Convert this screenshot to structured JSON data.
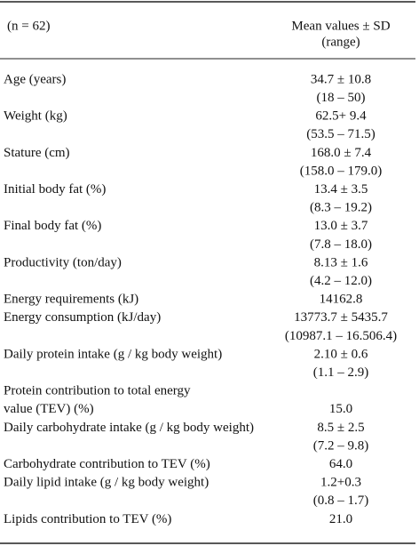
{
  "table": {
    "header": {
      "left": "(n = 62)",
      "right": [
        "Mean values ± SD",
        "(range)"
      ]
    },
    "rows": [
      {
        "label": [
          "Age (years)"
        ],
        "value": [
          "34.7 ± 10.8",
          "(18 – 50)"
        ]
      },
      {
        "label": [
          "Weight (kg)"
        ],
        "value": [
          "62.5+ 9.4",
          "(53.5 – 71.5)"
        ]
      },
      {
        "label": [
          "Stature (cm)"
        ],
        "value": [
          "168.0 ± 7.4",
          "(158.0 – 179.0)"
        ]
      },
      {
        "label": [
          "Initial body fat (%)"
        ],
        "value": [
          "13.4 ± 3.5",
          "(8.3 – 19.2)"
        ]
      },
      {
        "label": [
          "Final body fat (%)"
        ],
        "value": [
          "13.0 ± 3.7",
          "(7.8 – 18.0)"
        ]
      },
      {
        "label": [
          "Productivity (ton/day)"
        ],
        "value": [
          "8.13 ± 1.6",
          "(4.2 – 12.0)"
        ]
      },
      {
        "label": [
          "Energy requirements (kJ)"
        ],
        "value": [
          "14162.8"
        ]
      },
      {
        "label": [
          "Energy consumption (kJ/day)"
        ],
        "value": [
          "13773.7 ± 5435.7",
          "(10987.1 – 16.506.4)"
        ]
      },
      {
        "label": [
          "Daily protein intake (g / kg body weight)"
        ],
        "value": [
          "2.10 ± 0.6",
          "(1.1 – 2.9)"
        ]
      },
      {
        "label": [
          "Protein contribution to total energy",
          "value (TEV) (%)"
        ],
        "value": [
          "15.0"
        ]
      },
      {
        "label": [
          "Daily carbohydrate intake (g / kg body weight)"
        ],
        "value": [
          "8.5 ± 2.5",
          "(7.2 – 9.8)"
        ]
      },
      {
        "label": [
          "Carbohydrate contribution to TEV (%)"
        ],
        "value": [
          "64.0"
        ]
      },
      {
        "label": [
          "Daily lipid intake (g / kg body weight)"
        ],
        "value": [
          "1.2+0.3",
          "(0.8 – 1.7)"
        ]
      },
      {
        "label": [
          "Lipids contribution to TEV (%)"
        ],
        "value": [
          "21.0"
        ]
      }
    ]
  }
}
